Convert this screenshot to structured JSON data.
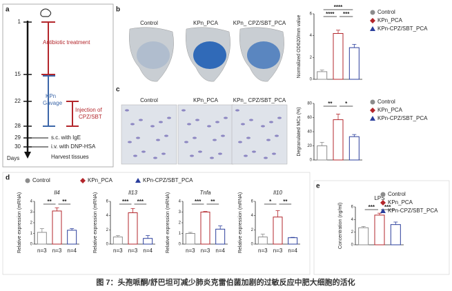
{
  "panels": {
    "a": "a",
    "b": "b",
    "c": "c",
    "d": "d",
    "e": "e"
  },
  "timeline": {
    "days": [
      "1",
      "15",
      "22",
      "28",
      "29",
      "30"
    ],
    "axis_label": "Days",
    "antibiotic": "Antibiotic treatment",
    "gavage_top": "KPn",
    "gavage_bottom": "Gavage",
    "injection_top": "Injection of",
    "injection_bottom": "CPZ/SBT",
    "sc": "s.c. with IgE",
    "iv": "i.v. with DNP-HSA",
    "harvest": "Harvest tissues"
  },
  "image_labels": [
    "Control",
    "KPn_PCA",
    "KPn_ CPZ/SBT_PCA"
  ],
  "caption": "图 7：头孢哌酮/舒巴坦可减少肺炎克雷伯菌加剧的过敏反应中肥大细胞的活化",
  "chart_data": [
    {
      "type": "bar",
      "ylabel": "Normalized OD620/mm value",
      "values": [
        0.7,
        4.2,
        2.9
      ],
      "errors": [
        0.15,
        0.3,
        0.3
      ],
      "colors": [
        "#8c8c8c",
        "#b3262b",
        "#2a3e9c"
      ],
      "ylim": [
        0,
        6
      ],
      "yticks": [
        0,
        2,
        4,
        6
      ],
      "significance": [
        {
          "label": "****",
          "pair": [
            0,
            2
          ]
        },
        {
          "label": "****",
          "pair": [
            0,
            1
          ]
        },
        {
          "label": "***",
          "pair": [
            1,
            2
          ]
        }
      ],
      "legend": [
        {
          "name": "Control",
          "marker": "circle"
        },
        {
          "name": "KPn_PCA",
          "marker": "diamond"
        },
        {
          "name": "KPn-CPZ/SBT_PCA",
          "marker": "triangle"
        }
      ]
    },
    {
      "type": "bar",
      "ylabel": "Degranulated MCs (%)",
      "values": [
        20,
        57,
        33
      ],
      "errors": [
        5,
        8,
        3
      ],
      "colors": [
        "#8c8c8c",
        "#b3262b",
        "#2a3e9c"
      ],
      "ylim": [
        0,
        80
      ],
      "yticks": [
        0,
        20,
        40,
        60,
        80
      ],
      "significance": [
        {
          "label": "**",
          "pair": [
            0,
            1
          ]
        },
        {
          "label": "*",
          "pair": [
            1,
            2
          ]
        }
      ],
      "legend": [
        {
          "name": "Control",
          "marker": "circle"
        },
        {
          "name": "KPn_PCA",
          "marker": "diamond"
        },
        {
          "name": "KPn-CPZ/SBT_PCA",
          "marker": "triangle"
        }
      ]
    },
    {
      "type": "bar",
      "title": "Il4",
      "ylabel": "Relative expression (mRNA)",
      "values": [
        1.1,
        3.1,
        1.3
      ],
      "errors": [
        0.35,
        0.3,
        0.15
      ],
      "bar_labels": [
        "n=3",
        "n=3",
        "n=4"
      ],
      "colors": [
        "#8c8c8c",
        "#b3262b",
        "#2a3e9c"
      ],
      "ylim": [
        0,
        4
      ],
      "yticks": [
        0,
        1,
        2,
        3,
        4
      ],
      "significance": [
        {
          "label": "**",
          "pair": [
            0,
            1
          ]
        },
        {
          "label": "**",
          "pair": [
            1,
            2
          ]
        }
      ],
      "legend": [
        {
          "name": "Control",
          "marker": "circle"
        },
        {
          "name": "KPn_PCA",
          "marker": "diamond"
        },
        {
          "name": "KPn-CPZ/SBT_PCA",
          "marker": "triangle"
        }
      ]
    },
    {
      "type": "bar",
      "title": "Il13",
      "ylabel": "Relative expression (mRNA)",
      "values": [
        1.0,
        4.4,
        0.8
      ],
      "errors": [
        0.2,
        0.6,
        0.4
      ],
      "bar_labels": [
        "n=3",
        "n=3",
        "n=4"
      ],
      "colors": [
        "#8c8c8c",
        "#b3262b",
        "#2a3e9c"
      ],
      "ylim": [
        0,
        6
      ],
      "yticks": [
        0,
        2,
        4,
        6
      ],
      "significance": [
        {
          "label": "***",
          "pair": [
            0,
            1
          ]
        },
        {
          "label": "***",
          "pair": [
            1,
            2
          ]
        }
      ]
    },
    {
      "type": "bar",
      "title": "Tnfa",
      "ylabel": "Relative expression (mRNA)",
      "values": [
        1.0,
        3.0,
        1.4
      ],
      "errors": [
        0.1,
        0.05,
        0.3
      ],
      "bar_labels": [
        "n=3",
        "n=3",
        "n=4"
      ],
      "colors": [
        "#8c8c8c",
        "#b3262b",
        "#2a3e9c"
      ],
      "ylim": [
        0,
        4
      ],
      "yticks": [
        0,
        1,
        2,
        3,
        4
      ],
      "significance": [
        {
          "label": "***",
          "pair": [
            0,
            1
          ]
        },
        {
          "label": "**",
          "pair": [
            1,
            2
          ]
        }
      ]
    },
    {
      "type": "bar",
      "title": "Il10",
      "ylabel": "Relative expression (mRNA)",
      "values": [
        1.0,
        3.8,
        0.9
      ],
      "errors": [
        0.4,
        0.9,
        0.05
      ],
      "bar_labels": [
        "n=3",
        "n=3",
        "n=4"
      ],
      "colors": [
        "#8c8c8c",
        "#b3262b",
        "#2a3e9c"
      ],
      "ylim": [
        0,
        6
      ],
      "yticks": [
        0,
        2,
        4,
        6
      ],
      "significance": [
        {
          "label": "*",
          "pair": [
            0,
            1
          ]
        },
        {
          "label": "**",
          "pair": [
            1,
            2
          ]
        }
      ]
    },
    {
      "type": "bar",
      "title": "LPS",
      "ylabel": "Concentration (ng/ml)",
      "values": [
        2.7,
        4.7,
        3.2
      ],
      "errors": [
        0.2,
        0.3,
        0.4
      ],
      "colors": [
        "#8c8c8c",
        "#b3262b",
        "#2a3e9c"
      ],
      "ylim": [
        0,
        6
      ],
      "yticks": [
        0,
        2,
        4,
        6
      ],
      "significance": [
        {
          "label": "***",
          "pair": [
            0,
            1
          ]
        },
        {
          "label": "***",
          "pair": [
            1,
            2
          ]
        }
      ],
      "legend": [
        {
          "name": "Control",
          "marker": "circle"
        },
        {
          "name": "KPn_PCA",
          "marker": "diamond"
        },
        {
          "name": "KPn-CPZ/SBT_PCA",
          "marker": "triangle"
        }
      ]
    }
  ]
}
